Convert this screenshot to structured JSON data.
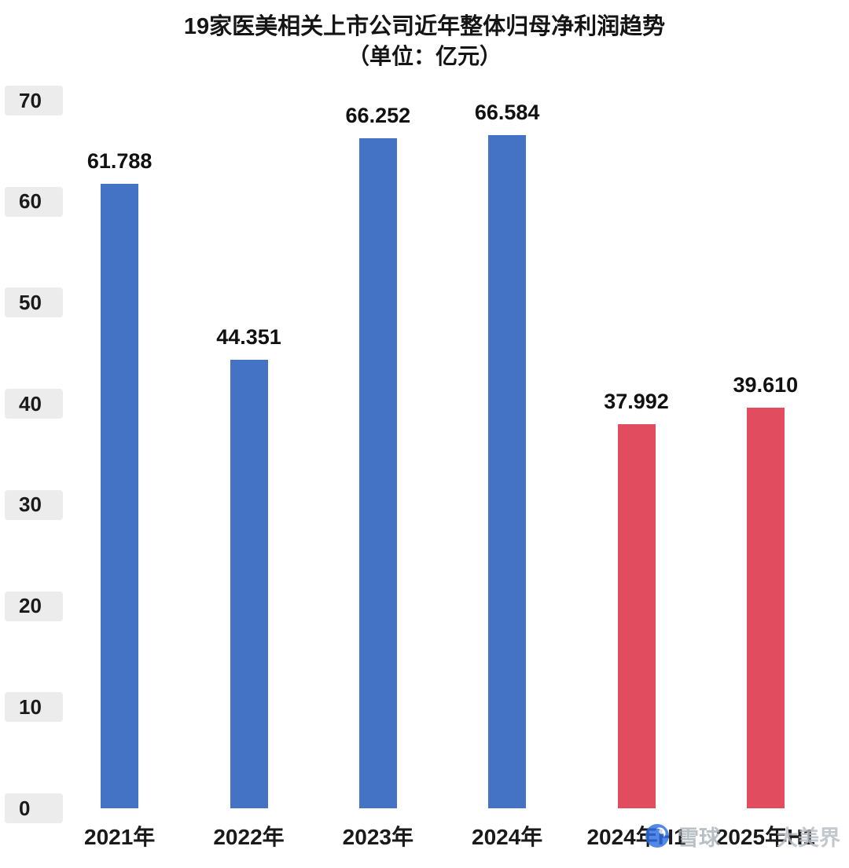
{
  "chart_data": {
    "type": "bar",
    "title": "19家医美相关上市公司近年整体归母净利润趋势",
    "subtitle": "（单位：亿元）",
    "categories": [
      "2021年",
      "2022年",
      "2023年",
      "2024年",
      "2024年H1",
      "2025年H1"
    ],
    "values": [
      61.788,
      44.351,
      66.252,
      66.584,
      37.992,
      39.61
    ],
    "value_labels": [
      "61.788",
      "44.351",
      "66.252",
      "66.584",
      "37.992",
      "39.610"
    ],
    "bar_colors": [
      "#4472c4",
      "#4472c4",
      "#4472c4",
      "#4472c4",
      "#e14d5e",
      "#e14d5e"
    ],
    "ylim": [
      0,
      70
    ],
    "yticks": [
      "70",
      "60",
      "50",
      "40",
      "30",
      "20",
      "10",
      "0"
    ],
    "grid": false,
    "legend": "none",
    "xlabel": "",
    "ylabel": ""
  },
  "watermark": {
    "brand": "雪球",
    "user": "大美界",
    "logo_color": "#2f6fe4"
  }
}
